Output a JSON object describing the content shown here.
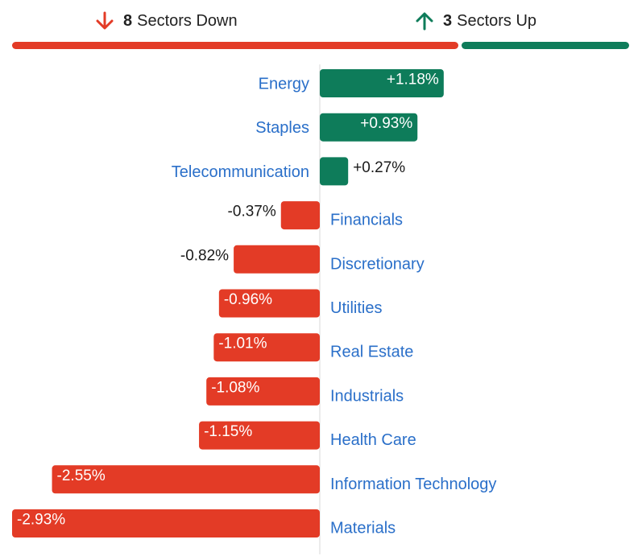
{
  "summary": {
    "down": {
      "count": "8",
      "label": "Sectors Down",
      "icon": "arrow-down-icon"
    },
    "up": {
      "count": "3",
      "label": "Sectors Up",
      "icon": "arrow-up-icon"
    },
    "down_count": 8,
    "up_count": 3
  },
  "colors": {
    "positive": "#0e7c5a",
    "negative": "#e33b26",
    "label_text": "#2a6fc9",
    "value_text": "#1a1a1a",
    "axis": "#d9d9d9"
  },
  "chart_data": {
    "type": "bar",
    "orientation": "horizontal",
    "categories": [
      "Energy",
      "Staples",
      "Telecommunication",
      "Financials",
      "Discretionary",
      "Utilities",
      "Real Estate",
      "Industrials",
      "Health Care",
      "Information Technology",
      "Materials"
    ],
    "values": [
      1.18,
      0.93,
      0.27,
      -0.37,
      -0.82,
      -0.96,
      -1.01,
      -1.08,
      -1.15,
      -2.55,
      -2.93
    ],
    "value_labels": [
      "+1.18%",
      "+0.93%",
      "+0.27%",
      "-0.37%",
      "-0.82%",
      "-0.96%",
      "-1.01%",
      "-1.08%",
      "-1.15%",
      "-2.55%",
      "-2.93%"
    ],
    "xlim": [
      -2.93,
      2.93
    ],
    "grid": false,
    "legend": "none"
  }
}
